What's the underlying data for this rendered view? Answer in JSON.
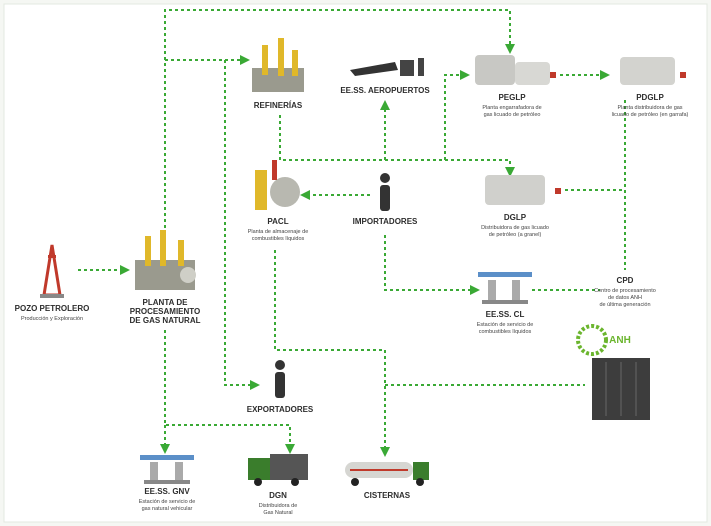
{
  "nodes": [
    {
      "title": "POZO PETROLERO",
      "subtitle": "Producción y Exploración"
    },
    {
      "title": [
        "PLANTA DE",
        "PROCESAMIENTO",
        "DE GAS NATURAL"
      ]
    },
    {
      "title": "REFINERÍAS"
    },
    {
      "title": "EE.SS. AEROPUERTOS"
    },
    {
      "title": "PEGLP",
      "subtitle": [
        "Planta engarrafadora de",
        "gas licuado de petróleo"
      ]
    },
    {
      "title": "PDGLP",
      "subtitle": [
        "Planta distribuidora de gas",
        "licuado de petróleo (en garrafa)"
      ]
    },
    {
      "title": "PACL",
      "subtitle": [
        "Planta de almacenaje de",
        "combustibles líquidos"
      ]
    },
    {
      "title": "IMPORTADORES"
    },
    {
      "title": "DGLP",
      "subtitle": [
        "Distribuidora de gas licuado",
        "de petróleo (a granel)"
      ]
    },
    {
      "title": "CPD",
      "subtitle": [
        "Centro de procesamiento",
        "de datos ANH",
        "de última generación"
      ]
    },
    {
      "title": "EE.SS. CL",
      "subtitle": [
        "Estación de servicio de",
        "combustibles líquidos"
      ]
    },
    {
      "title": "EXPORTADORES"
    },
    {
      "title": "EE.SS. GNV",
      "subtitle": [
        "Estación de servicio de",
        "gas natural vehicular"
      ]
    },
    {
      "title": "DGN",
      "subtitle": [
        "Distribuidora de",
        "Gas Natural"
      ]
    },
    {
      "title": "CISTERNAS"
    }
  ],
  "logo": "ANH"
}
